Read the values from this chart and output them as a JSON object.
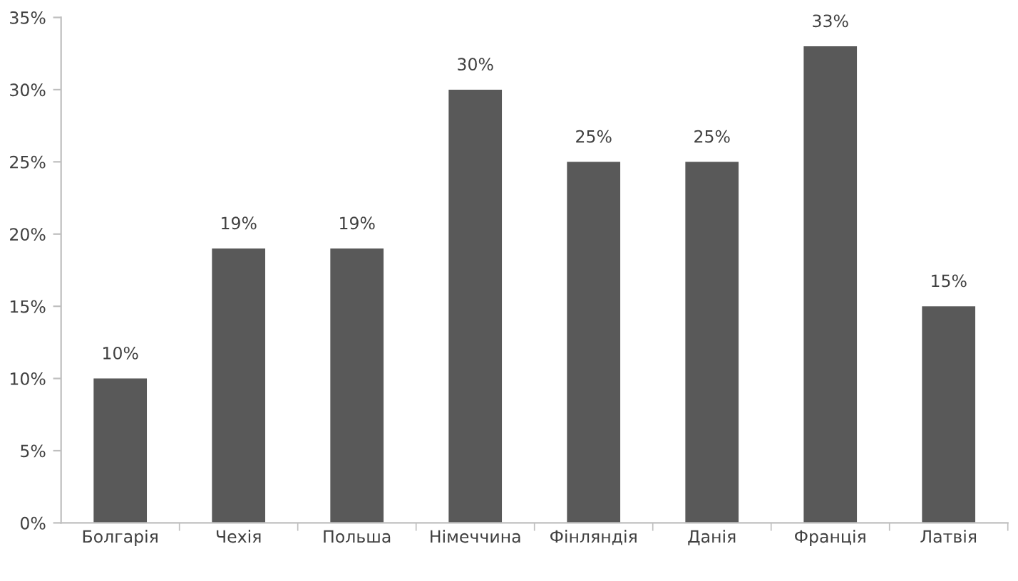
{
  "chart_data": {
    "type": "bar",
    "categories": [
      "Болгарія",
      "Чехія",
      "Польша",
      "Німеччина",
      "Фінляндія",
      "Данія",
      "Франція",
      "Латвія"
    ],
    "values": [
      10,
      19,
      19,
      30,
      25,
      25,
      33,
      15
    ],
    "value_labels": [
      "10%",
      "19%",
      "19%",
      "30%",
      "25%",
      "25%",
      "33%",
      "15%"
    ],
    "color": "#595959",
    "ylim": [
      0,
      35
    ],
    "yticks": [
      {
        "value": 0,
        "label": "0%"
      },
      {
        "value": 5,
        "label": "5%"
      },
      {
        "value": 10,
        "label": "10%"
      },
      {
        "value": 15,
        "label": "15%"
      },
      {
        "value": 20,
        "label": "20%"
      },
      {
        "value": 25,
        "label": "25%"
      },
      {
        "value": 30,
        "label": "30%"
      },
      {
        "value": 35,
        "label": "35%"
      }
    ],
    "grid": false,
    "legend": false
  }
}
